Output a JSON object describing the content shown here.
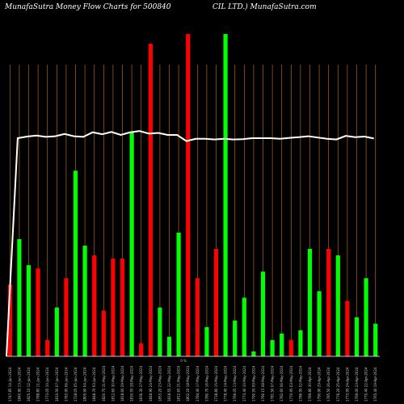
{
  "colors": {
    "background": "#000000",
    "grid": "#b5651d",
    "up": "#00ff00",
    "down": "#ff0000",
    "line": "#ffffff",
    "baseline": "#ffffff",
    "text": "#ffffff"
  },
  "chart_data": {
    "type": "bar",
    "title_left": "MunafaSutra  Money Flow  Charts for 500840",
    "title_right": "CIL LTD.) MunafaSutra.com",
    "mid_label": "0 %",
    "ylim": [
      0,
      100
    ],
    "categories": [
      "1747.85 14-Jun-2024",
      "1840.90 13-Jun-2024",
      "1825.10 12-Jun-2024",
      "1788.80 11-Jun-2024",
      "1773.05 10-Jun-2024",
      "1810.50 07-Jun-2024",
      "1783.95 06-Jun-2024",
      "1728.05 05-Jun-2024",
      "1805.90 04-Jun-2024",
      "1848.70 03-Jun-2024",
      "1820.75 31-May-2024",
      "1812.60 30-May-2024",
      "1818.60 29-May-2024",
      "1830.55 28-May-2024",
      "1836.30 27-May-2024",
      "1848.90 24-May-2024",
      "1853.20 23-May-2024",
      "1818.55 22-May-2024",
      "1812.65 21-May-2024",
      "1802.20 18-May-2024",
      "1784.40 17-May-2024",
      "1780.70 16-May-2024",
      "1738.80 15-May-2024",
      "1778.40 14-May-2024",
      "1766.05 13-May-2024",
      "1773.40 10-May-2024",
      "1790.55 09-May-2024",
      "1790.15 08-May-2024",
      "1781.50 07-May-2024",
      "1782.60 06-May-2024",
      "1770.95 03-May-2024",
      "1786.95 02-May-2024",
      "1789.80 30-Apr-2024",
      "1790.90 29-Apr-2024",
      "1785.50 26-Apr-2024",
      "1776.20 25-Apr-2024",
      "1773.95 24-Apr-2024",
      "1769.00 23-Apr-2024",
      "1770.40 22-Apr-2024",
      "1765.40 19-Apr-2024"
    ],
    "series": [
      {
        "values": [
          22,
          36,
          28,
          27,
          5,
          15,
          24,
          57,
          34,
          31,
          14,
          30,
          30,
          69,
          4,
          96,
          15,
          6,
          38,
          99,
          24,
          9,
          33,
          99,
          11,
          18,
          1.5,
          26,
          5,
          7,
          5,
          8,
          33,
          20,
          33,
          31,
          17,
          12,
          24,
          10
        ],
        "direction": [
          "down",
          "up",
          "up",
          "down",
          "down",
          "up",
          "down",
          "up",
          "up",
          "down",
          "down",
          "down",
          "down",
          "up",
          "down",
          "down",
          "up",
          "up",
          "up",
          "down",
          "down",
          "up",
          "down",
          "up",
          "up",
          "up",
          "up",
          "up",
          "up",
          "up",
          "down",
          "up",
          "up",
          "up",
          "down",
          "up",
          "down",
          "up",
          "up",
          "up"
        ]
      }
    ],
    "flow_line": [
      0,
      67,
      67.5,
      67.8,
      67.4,
      67.6,
      68.3,
      67.6,
      67.4,
      68.8,
      68.2,
      68.9,
      68.0,
      68.8,
      69.2,
      68.4,
      68.6,
      68.0,
      68.0,
      66.1,
      66.8,
      66.8,
      66.6,
      66.8,
      66.6,
      66.7,
      67.0,
      67.0,
      67.0,
      66.8,
      67.1,
      67.3,
      67.6,
      67.2,
      66.8,
      66.6,
      67.7,
      67.3,
      67.5,
      66.9
    ],
    "grid": true,
    "legend": "none"
  }
}
